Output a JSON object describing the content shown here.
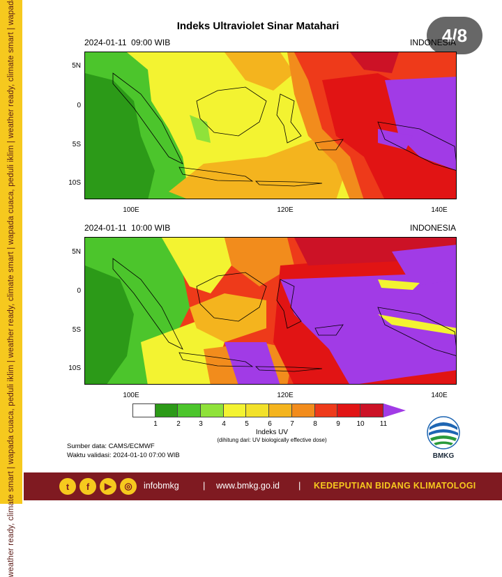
{
  "side_strip_text": "weather ready, climate smart  |  wapada cuaca, peduli iklim  |  weather ready, climate smart  |  wapada cuaca, peduli iklim  |  weather ready, climate smart  |  wapada cuaca, peduli iklim",
  "page_indicator": "4/8",
  "title": "Indeks Ultraviolet Sinar Matahari",
  "panels": [
    {
      "date": "2024-01-11",
      "time": "09:00 WIB",
      "region": "INDONESIA"
    },
    {
      "date": "2024-01-11",
      "time": "10:00 WIB",
      "region": "INDONESIA"
    }
  ],
  "lat_ticks": [
    "5N",
    "0",
    "5S",
    "10S"
  ],
  "lon_ticks": [
    "100E",
    "120E",
    "140E"
  ],
  "legend": {
    "title": "Indeks UV",
    "subtitle": "(dihitung dari: UV biologically effective dose)",
    "ticks": [
      "1",
      "2",
      "3",
      "4",
      "5",
      "6",
      "7",
      "8",
      "9",
      "10",
      "11"
    ],
    "colors": [
      "#ffffff",
      "#2c9a18",
      "#4cc52c",
      "#8fe23a",
      "#f3f331",
      "#f2e12a",
      "#f4b41e",
      "#f28c1c",
      "#ee3a1a",
      "#e11414",
      "#cc1226"
    ],
    "overflow_color": "#a13be6"
  },
  "source": {
    "line1": "Sumber data: CAMS/ECMWF",
    "line2": "Waktu validasi: 2024-01-10 07:00 WIB"
  },
  "logo_text": "BMKG",
  "footer": {
    "handle": "infobmkg",
    "separator": "|",
    "website": "www.bmkg.go.id",
    "department": "KEDEPUTIAN BIDANG KLIMATOLOGI",
    "social_icons": [
      "twitter-icon",
      "facebook-icon",
      "youtube-icon",
      "instagram-icon"
    ]
  }
}
